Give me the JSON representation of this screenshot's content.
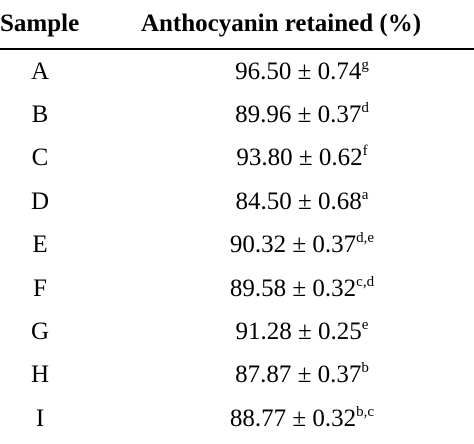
{
  "table": {
    "headers": {
      "sample": "Sample",
      "value": "Anthocyanin retained (%)"
    },
    "rows": [
      {
        "sample": "A",
        "value": "96.50 ± 0.74",
        "sup": "g"
      },
      {
        "sample": "B",
        "value": "89.96 ± 0.37",
        "sup": "d"
      },
      {
        "sample": "C",
        "value": "93.80 ± 0.62",
        "sup": "f"
      },
      {
        "sample": "D",
        "value": "84.50 ± 0.68",
        "sup": "a"
      },
      {
        "sample": "E",
        "value": "90.32 ± 0.37",
        "sup": "d,e"
      },
      {
        "sample": "F",
        "value": "89.58 ± 0.32",
        "sup": "c,d"
      },
      {
        "sample": "G",
        "value": "91.28 ± 0.25",
        "sup": "e"
      },
      {
        "sample": "H",
        "value": "87.87 ± 0.37",
        "sup": "b"
      },
      {
        "sample": "I",
        "value": "88.77 ± 0.32",
        "sup": "b,c"
      }
    ]
  }
}
